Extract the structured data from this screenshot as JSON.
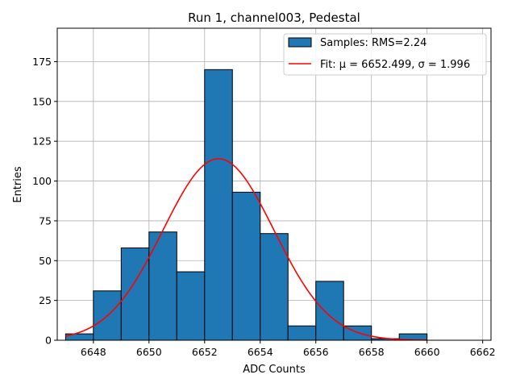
{
  "chart_data": {
    "type": "bar",
    "title": "Run 1, channel003, Pedestal",
    "xlabel": "ADC Counts",
    "ylabel": "Entries",
    "xlim": [
      6646.7,
      6662.3
    ],
    "ylim": [
      0,
      196
    ],
    "x_ticks": [
      6648,
      6650,
      6652,
      6654,
      6656,
      6658,
      6660,
      6662
    ],
    "y_ticks": [
      0,
      25,
      50,
      75,
      100,
      125,
      150,
      175
    ],
    "grid": true,
    "legend_position": "top-right",
    "bins": [
      {
        "x0": 6647,
        "x1": 6648,
        "value": 4
      },
      {
        "x0": 6648,
        "x1": 6649,
        "value": 31
      },
      {
        "x0": 6649,
        "x1": 6650,
        "value": 58
      },
      {
        "x0": 6650,
        "x1": 6651,
        "value": 68
      },
      {
        "x0": 6651,
        "x1": 6652,
        "value": 43
      },
      {
        "x0": 6652,
        "x1": 6653,
        "value": 170
      },
      {
        "x0": 6653,
        "x1": 6654,
        "value": 93
      },
      {
        "x0": 6654,
        "x1": 6655,
        "value": 67
      },
      {
        "x0": 6655,
        "x1": 6656,
        "value": 9
      },
      {
        "x0": 6656,
        "x1": 6657,
        "value": 37
      },
      {
        "x0": 6657,
        "x1": 6658,
        "value": 9
      },
      {
        "x0": 6658,
        "x1": 6659,
        "value": 1
      },
      {
        "x0": 6659,
        "x1": 6660,
        "value": 4
      },
      {
        "x0": 6660,
        "x1": 6661,
        "value": 0
      },
      {
        "x0": 6661,
        "x1": 6662,
        "value": 0
      }
    ],
    "fit": {
      "type": "gaussian",
      "mu": 6652.499,
      "sigma": 1.996,
      "peak": 114,
      "x_range": [
        6647,
        6660
      ]
    },
    "series": [
      {
        "name": "Samples: RMS=2.24",
        "kind": "histogram",
        "color": "#1f77b4",
        "edge_color": "#000000"
      },
      {
        "name": "Fit: μ = 6652.499, σ = 1.996",
        "kind": "line",
        "color": "#ff0000"
      }
    ]
  }
}
